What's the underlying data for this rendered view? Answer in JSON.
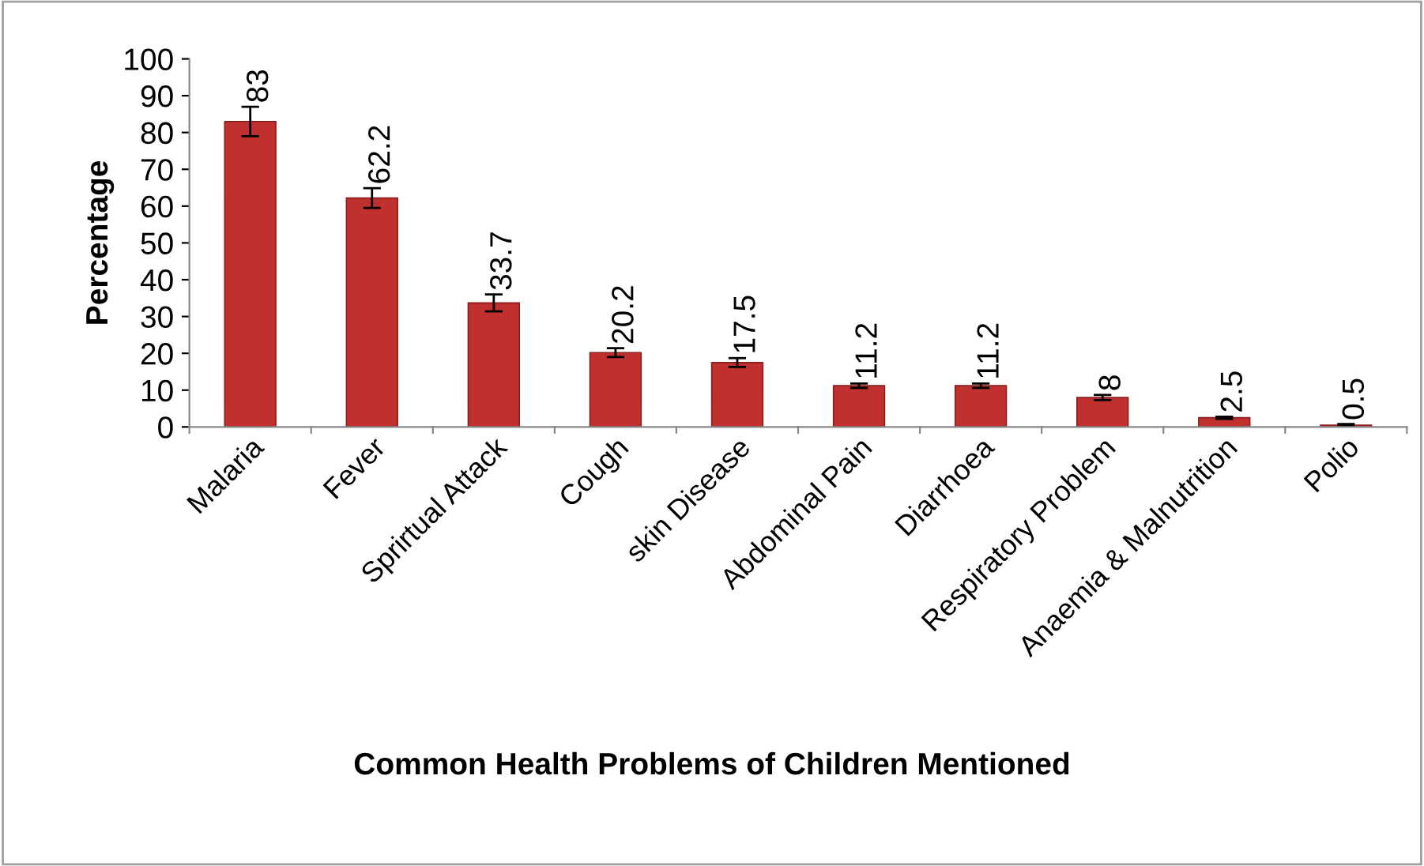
{
  "chart_data": {
    "type": "bar",
    "xlabel": "Common Health Problems of Children Mentioned",
    "ylabel": "Percentage",
    "categories": [
      "Malaria",
      "Fever",
      "Sprirtual Attack",
      "Cough",
      "skin Disease",
      "Abdominal Pain",
      "Diarrhoea",
      "Respiratory Problem",
      "Anaemia & Malnutrition",
      "Polio"
    ],
    "values": [
      83,
      62.2,
      33.7,
      20.2,
      17.5,
      11.2,
      11.2,
      8,
      2.5,
      0.5
    ],
    "errors": [
      4,
      2.7,
      2.3,
      1.2,
      1.2,
      0.6,
      0.6,
      0.7,
      0.3,
      0.3
    ],
    "color": "#c0302e",
    "ylim": [
      0,
      100
    ],
    "yticks": [
      0,
      10,
      20,
      30,
      40,
      50,
      60,
      70,
      80,
      90,
      100
    ],
    "data_labels": true,
    "grid": false,
    "legend": false
  }
}
